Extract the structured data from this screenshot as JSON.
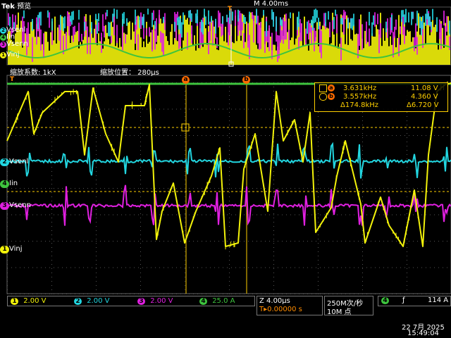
{
  "header": {
    "brand": "Tek",
    "mode": "预览",
    "timebase": "M 4.00ms",
    "trigger_marker": "T"
  },
  "overview_channels": [
    {
      "label": "Vsenl",
      "num": "2",
      "color": "#22d6e0"
    },
    {
      "label": "Iin",
      "num": "4",
      "color": "#3ec43e"
    },
    {
      "label": "Vsenn",
      "num": "3",
      "color": "#e020e0"
    },
    {
      "label": "Vinj",
      "num": "1",
      "color": "#f2f20a"
    }
  ],
  "zoom": {
    "factor_label": "缩放系数: 1kX",
    "position_label": "缩放位置：  280µs",
    "trigger_marker": "T"
  },
  "main_channels": [
    {
      "label": "Vsenl",
      "num": "2",
      "color": "#22d6e0"
    },
    {
      "label": "Iin",
      "num": "4",
      "color": "#3ec43e"
    },
    {
      "label": "Vsenn",
      "num": "3",
      "color": "#e020e0"
    },
    {
      "label": "Vinj",
      "num": "1",
      "color": "#f2f20a"
    }
  ],
  "cursors": {
    "a_marker": "a",
    "b_marker": "b",
    "a_freq": "3.631kHz",
    "a_volt": "11.08 V",
    "b_freq": "3.557kHz",
    "b_volt": "4.360 V",
    "delta_freq": "Δ174.8kHz",
    "delta_volt": "Δ6.720 V"
  },
  "status": {
    "ch1": {
      "num": "1",
      "value": "2.00 V",
      "color": "#f2f20a"
    },
    "ch2": {
      "num": "2",
      "value": "2.00 V",
      "color": "#22d6e0"
    },
    "ch3": {
      "num": "3",
      "value": "2.00 V",
      "color": "#e020e0"
    },
    "ch4": {
      "num": "4",
      "value": "25.0 A",
      "color": "#3ec43e"
    },
    "zoom_time": "Z 4.00µs",
    "trigger_pos": "T▸0.00000 s",
    "sample_rate": "250M次/秒",
    "record_len": "10M 点",
    "trig_ch": "4",
    "trig_slope": "ƒ",
    "trig_level": "114 A",
    "date": "22 7月  2025",
    "time": "15:49:04"
  }
}
